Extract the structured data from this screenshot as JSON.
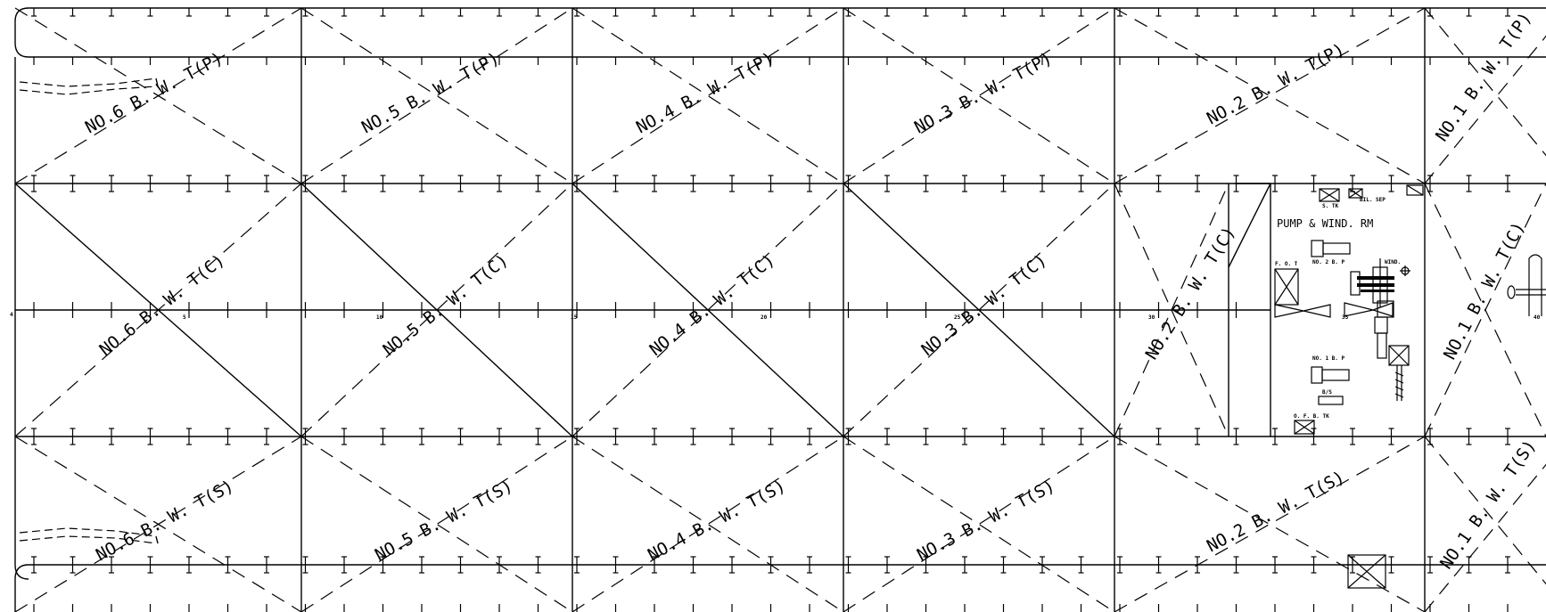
{
  "tanks": {
    "port": [
      "NO.6 B. W. T(P)",
      "NO.5 B. W. T(P)",
      "NO.4 B. W. T(P)",
      "NO.3 B. W. T(P)",
      "NO.2 B. W. T(P)",
      "NO.1 B. W. T(P)"
    ],
    "center": [
      "NO.6 B. W. T(C)",
      "NO.5 B. W. T(C)",
      "NO.4 B. W. T(C)",
      "NO.3 B. W. T(C)",
      "NO.2 B. W. T(C)",
      "NO.1 B. W. T(C)"
    ],
    "starboard": [
      "NO.6 B. W. T(S)",
      "NO.5 B. W. T(S)",
      "NO.4 B. W. T(S)",
      "NO.3 B. W. T(S)",
      "NO.2 B. W. T(S)",
      "NO.1 B. W. T(S)"
    ]
  },
  "pump_room": {
    "title": "PUMP & WIND. RM",
    "labels": {
      "s_tk": "S. TK",
      "bil_sep": "BIL. SEP",
      "fo_t": "F. O. T",
      "no2_bp": "NO. 2 B. P",
      "wind": "WIND.",
      "no1_bp": "NO. 1 B. P",
      "bs": "B/S",
      "of_b_tk": "O. F. B. TK"
    }
  },
  "frame_numbers": [
    "4",
    "5",
    "10",
    "15",
    "20",
    "25",
    "30",
    "35",
    "40"
  ]
}
